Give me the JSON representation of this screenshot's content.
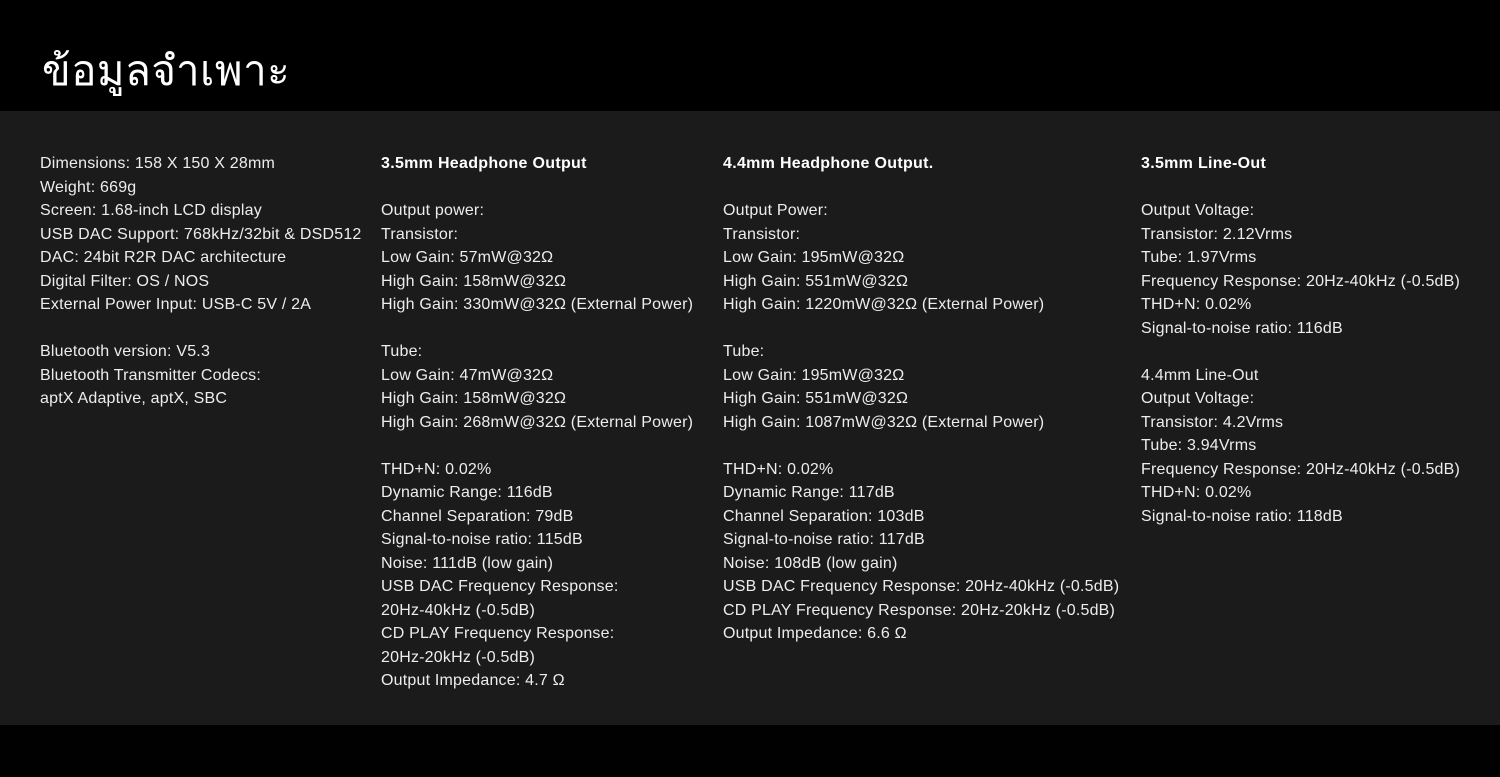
{
  "page": {
    "title": "ข้อมูลจำเพาะ",
    "colors": {
      "frame": "#000000",
      "panel": "#1b1b1b",
      "text": "#ededed",
      "heading": "#ffffff"
    }
  },
  "columns": {
    "general": {
      "lines": [
        "Dimensions: 158 X 150 X 28mm",
        "Weight: 669g",
        "Screen: 1.68-inch LCD display",
        "USB DAC Support: 768kHz/32bit & DSD512",
        "DAC: 24bit R2R DAC architecture",
        "Digital Filter: OS / NOS",
        "External Power Input: USB-C 5V / 2A",
        "",
        "Bluetooth version: V5.3",
        "Bluetooth Transmitter Codecs:",
        "aptX Adaptive, aptX, SBC"
      ]
    },
    "hp_35mm": {
      "header": "3.5mm Headphone Output",
      "lines": [
        "",
        "Output power:",
        "Transistor:",
        "Low Gain: 57mW@32Ω",
        "High Gain: 158mW@32Ω",
        "High Gain: 330mW@32Ω (External Power)",
        "",
        "Tube:",
        "Low Gain: 47mW@32Ω",
        "High Gain: 158mW@32Ω",
        "High Gain: 268mW@32Ω (External Power)",
        "",
        "THD+N: 0.02%",
        "Dynamic Range: 116dB",
        "Channel Separation: 79dB",
        "Signal-to-noise ratio: 115dB",
        "Noise: 111dB (low gain)",
        "USB DAC Frequency Response:",
        "20Hz-40kHz (-0.5dB)",
        "CD PLAY Frequency Response:",
        "20Hz-20kHz (-0.5dB)",
        "Output Impedance: 4.7 Ω"
      ]
    },
    "hp_44mm": {
      "header": "4.4mm Headphone Output.",
      "lines": [
        "",
        "Output Power:",
        "Transistor:",
        "Low Gain: 195mW@32Ω",
        "High Gain: 551mW@32Ω",
        "High Gain: 1220mW@32Ω (External Power)",
        "",
        "Tube:",
        "Low Gain: 195mW@32Ω",
        "High Gain: 551mW@32Ω",
        "High Gain: 1087mW@32Ω (External Power)",
        "",
        "THD+N: 0.02%",
        "Dynamic Range: 117dB",
        "Channel Separation: 103dB",
        "Signal-to-noise ratio: 117dB",
        "Noise: 108dB (low gain)",
        "USB DAC Frequency Response: 20Hz-40kHz (-0.5dB)",
        "CD PLAY Frequency Response: 20Hz-20kHz (-0.5dB)",
        "Output Impedance: 6.6 Ω"
      ]
    },
    "lineout": {
      "header": "3.5mm Line-Out",
      "lines": [
        "",
        "Output Voltage:",
        "Transistor: 2.12Vrms",
        "Tube: 1.97Vrms",
        "Frequency Response: 20Hz-40kHz (-0.5dB)",
        "THD+N: 0.02%",
        "Signal-to-noise ratio: 116dB",
        "",
        "4.4mm Line-Out",
        "Output Voltage:",
        "Transistor: 4.2Vrms",
        "Tube: 3.94Vrms",
        "Frequency Response: 20Hz-40kHz (-0.5dB)",
        "THD+N: 0.02%",
        "Signal-to-noise ratio: 118dB"
      ]
    }
  }
}
